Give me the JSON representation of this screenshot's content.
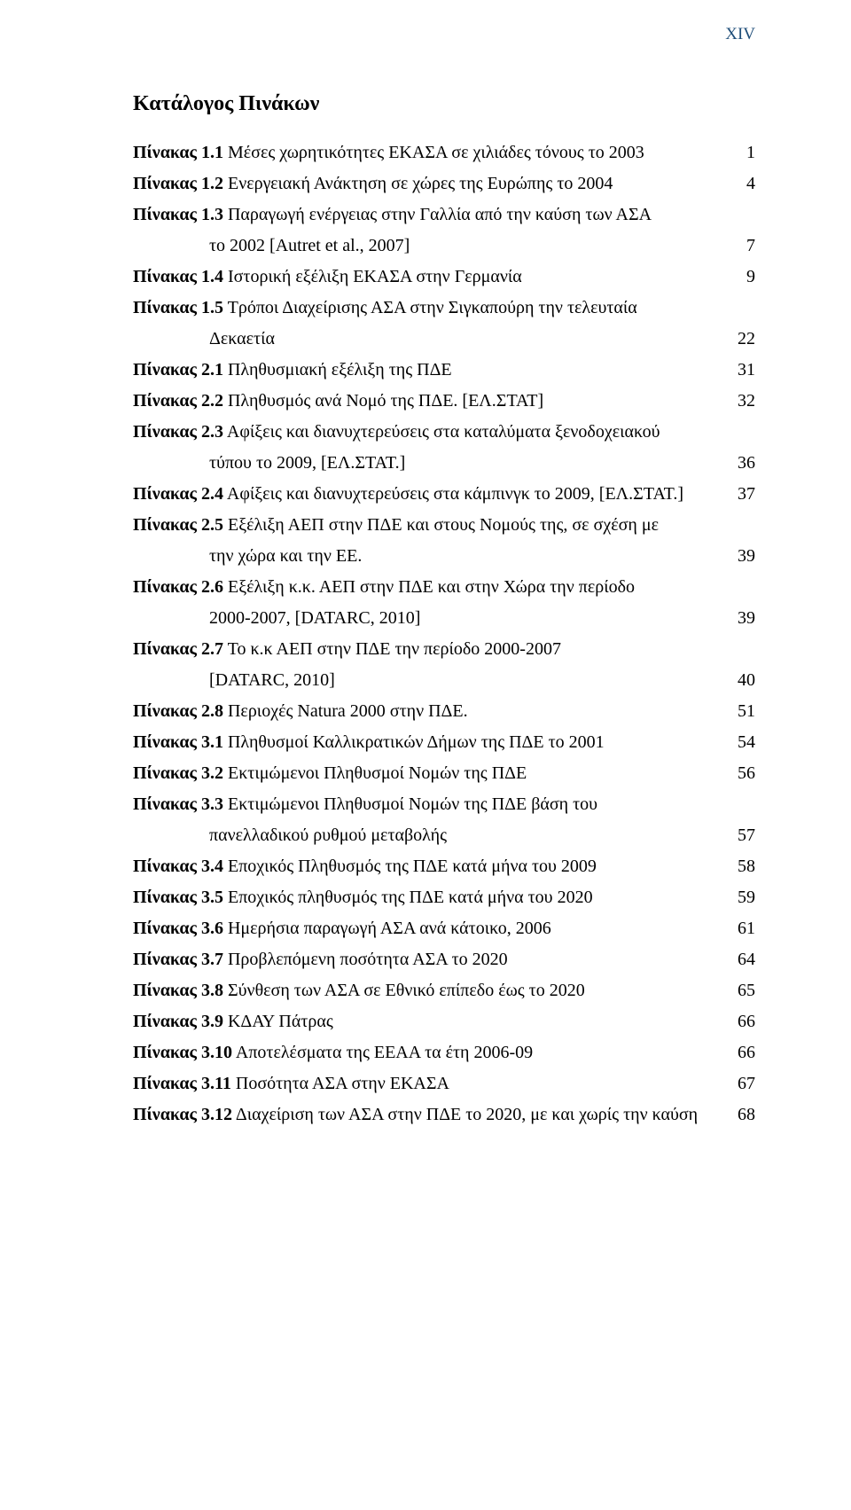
{
  "page_label": "XIV",
  "title": "Κατάλογος Πινάκων",
  "entries": [
    {
      "label": "Πίνακας 1.1",
      "text": " Μέσες χωρητικότητες ΕΚΑΣΑ σε χιλιάδες τόνους το 2003",
      "page": "1"
    },
    {
      "label": "Πίνακας 1.2",
      "text": " Ενεργειακή Ανάκτηση σε χώρες της Ευρώπης το 2004",
      "page": "4"
    },
    {
      "label": "Πίνακας 1.3",
      "text": " Παραγωγή ενέργειας στην Γαλλία από την καύση των ΑΣΑ",
      "page": ""
    },
    {
      "cont": true,
      "text": "το 2002 [Autret et al., 2007]",
      "page": "7"
    },
    {
      "label": "Πίνακας 1.4",
      "text": " Ιστορική εξέλιξη ΕΚΑΣΑ στην Γερμανία",
      "page": "9"
    },
    {
      "label": "Πίνακας 1.5",
      "text": " Τρόποι Διαχείρισης ΑΣΑ στην Σιγκαπούρη την τελευταία",
      "page": ""
    },
    {
      "cont": true,
      "text": "Δεκαετία",
      "page": "22"
    },
    {
      "label": "Πίνακας 2.1",
      "text": " Πληθυσμιακή εξέλιξη της ΠΔΕ",
      "page": "31"
    },
    {
      "label": "Πίνακας 2.2",
      "text": " Πληθυσμός ανά Νομό της ΠΔΕ. [ΕΛ.ΣΤΑΤ]",
      "page": "32"
    },
    {
      "label": "Πίνακας 2.3",
      "text": " Αφίξεις και διανυχτερεύσεις στα καταλύματα ξενοδοχειακού",
      "page": ""
    },
    {
      "cont": true,
      "text": "τύπου το 2009, [ΕΛ.ΣΤΑΤ.]",
      "page": "36"
    },
    {
      "label": "Πίνακας 2.4",
      "text": " Αφίξεις και διανυχτερεύσεις στα κάμπινγκ το 2009, [ΕΛ.ΣΤΑΤ.]",
      "page": "37"
    },
    {
      "label": "Πίνακας 2.5",
      "text": " Εξέλιξη ΑΕΠ στην ΠΔΕ και στους Νομούς της, σε σχέση με",
      "page": ""
    },
    {
      "cont": true,
      "text": "την χώρα και την ΕΕ.",
      "page": "39"
    },
    {
      "label": "Πίνακας 2.6",
      "text": " Εξέλιξη κ.κ. ΑΕΠ στην ΠΔΕ και στην Χώρα την περίοδο",
      "page": ""
    },
    {
      "cont": true,
      "text": "2000-2007, [DATARC, 2010]",
      "page": "39"
    },
    {
      "label": "Πίνακας 2.7",
      "text": " Το κ.κ ΑΕΠ στην ΠΔΕ την περίοδο 2000-2007",
      "page": ""
    },
    {
      "cont": true,
      "text": "[DATARC, 2010]",
      "page": "40"
    },
    {
      "label": "Πίνακας 2.8",
      "text": " Περιοχές Natura 2000 στην ΠΔΕ.",
      "page": "51"
    },
    {
      "label": "Πίνακας 3.1",
      "text": " Πληθυσμοί Καλλικρατικών Δήμων της ΠΔΕ το 2001",
      "page": "54"
    },
    {
      "label": "Πίνακας 3.2",
      "text": " Εκτιμώμενοι Πληθυσμοί Νομών της ΠΔΕ",
      "page": "56"
    },
    {
      "label": "Πίνακας 3.3",
      "text": " Εκτιμώμενοι Πληθυσμοί Νομών της ΠΔΕ βάση του",
      "page": ""
    },
    {
      "cont": true,
      "text": "πανελλαδικού ρυθμού μεταβολής",
      "page": "57"
    },
    {
      "label": "Πίνακας 3.4",
      "text": " Εποχικός Πληθυσμός της ΠΔΕ κατά μήνα του 2009",
      "page": "58"
    },
    {
      "label": "Πίνακας 3.5",
      "text": " Εποχικός πληθυσμός της ΠΔΕ κατά μήνα του 2020",
      "page": "59"
    },
    {
      "label": "Πίνακας 3.6",
      "text": " Ημερήσια παραγωγή ΑΣΑ ανά κάτοικο, 2006",
      "page": "61"
    },
    {
      "label": "Πίνακας 3.7",
      "text": " Προβλεπόμενη ποσότητα ΑΣΑ το 2020",
      "page": "64"
    },
    {
      "label": "Πίνακας 3.8",
      "text": " Σύνθεση των ΑΣΑ σε Εθνικό επίπεδο έως το 2020",
      "page": "65"
    },
    {
      "label": "Πίνακας 3.9",
      "text": " ΚΔΑΥ Πάτρας",
      "page": "66"
    },
    {
      "label": "Πίνακας 3.10",
      "text": " Αποτελέσματα της ΕΕΑΑ τα έτη 2006-09",
      "page": "66"
    },
    {
      "label": "Πίνακας 3.11",
      "text": " Ποσότητα ΑΣΑ στην ΕΚΑΣΑ",
      "page": "67"
    },
    {
      "label": "Πίνακας 3.12",
      "text": " Διαχείριση των ΑΣΑ στην ΠΔΕ το 2020, με και χωρίς την καύση",
      "page": "68"
    }
  ]
}
